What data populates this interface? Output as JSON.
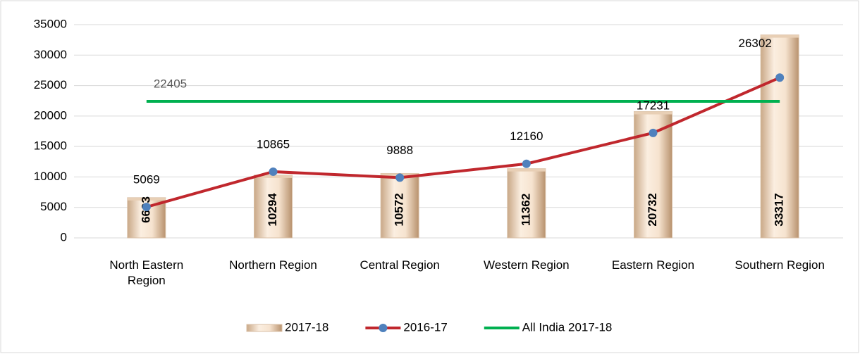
{
  "chart_data": {
    "type": "bar",
    "categories": [
      "North Eastern Region",
      "Northern Region",
      "Central Region",
      "Western Region",
      "Eastern Region",
      "Southern Region"
    ],
    "series": [
      {
        "name": "2017-18",
        "type": "bar",
        "color": "#f2d9c0",
        "values": [
          6603,
          10294,
          10572,
          11362,
          20732,
          33317
        ]
      },
      {
        "name": "2016-17",
        "type": "line",
        "color": "#c0272d",
        "marker_color": "#4f81bd",
        "values": [
          5069,
          10865,
          9888,
          12160,
          17231,
          26302
        ]
      },
      {
        "name": "All India 2017-18",
        "type": "line",
        "color": "#00b050",
        "values": [
          22405,
          22405,
          22405,
          22405,
          22405,
          22405
        ]
      }
    ],
    "ylim": [
      0,
      35000
    ],
    "yticks": [
      0,
      5000,
      10000,
      15000,
      20000,
      25000,
      30000,
      35000
    ],
    "grid": true,
    "legend": "bottom"
  }
}
